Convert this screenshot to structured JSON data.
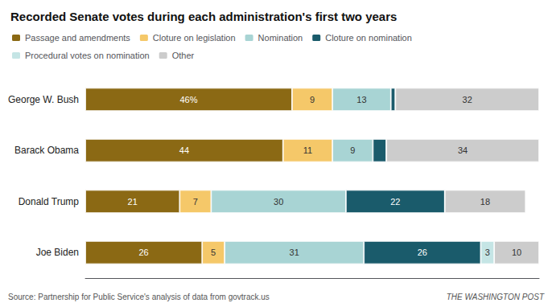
{
  "chart_data": {
    "type": "bar",
    "title": "Recorded Senate votes during each administration's first two years",
    "orientation": "horizontal",
    "stacked": true,
    "categories": [
      "George W. Bush",
      "Barack Obama",
      "Donald Trump",
      "Joe Biden"
    ],
    "series": [
      {
        "name": "Passage and amendments",
        "color": "#8B6914",
        "values": [
          46,
          44,
          21,
          26
        ],
        "value_labels": [
          "46%",
          "44",
          "21",
          "26"
        ]
      },
      {
        "name": "Cloture on legislation",
        "color": "#F5C869",
        "values": [
          9,
          11,
          7,
          5
        ],
        "value_labels": [
          "9",
          "11",
          "7",
          "5"
        ]
      },
      {
        "name": "Nomination",
        "color": "#A8D4D4",
        "values": [
          13,
          9,
          30,
          31
        ],
        "value_labels": [
          "13",
          "9",
          "30",
          "31"
        ]
      },
      {
        "name": "Cloture on nomination",
        "color": "#1A5B6B",
        "values": [
          1,
          3,
          22,
          26
        ],
        "value_labels": [
          null,
          null,
          "22",
          "26"
        ]
      },
      {
        "name": "Procedural votes on nomination",
        "color": "#C5E5E5",
        "values": [
          0,
          0,
          0,
          3
        ],
        "value_labels": [
          null,
          null,
          null,
          "3"
        ]
      },
      {
        "name": "Other",
        "color": "#CCCCCC",
        "values": [
          32,
          34,
          18,
          10
        ],
        "value_labels": [
          "32",
          "34",
          "18",
          "10"
        ]
      }
    ],
    "xlim": [
      0,
      101
    ],
    "tick_labels": "y",
    "grid": false,
    "legend": "top",
    "annotations": [
      "Source: Partnership for Public Service's analysis of data from govtrack.us",
      "THE WASHINGTON POST"
    ]
  }
}
